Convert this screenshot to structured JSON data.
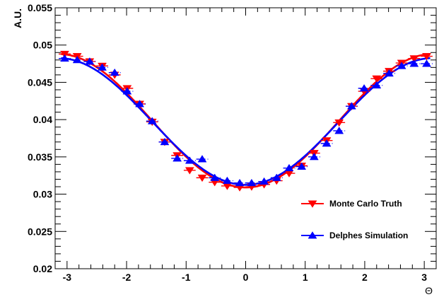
{
  "chart_data": {
    "type": "scatter",
    "title": "",
    "xlabel": "Θ",
    "ylabel": "A.U.",
    "xlim": [
      -3.2,
      3.2
    ],
    "ylim": [
      0.02,
      0.055
    ],
    "x_ticks": [
      -3,
      -2,
      -1,
      0,
      1,
      2,
      3
    ],
    "x_tick_labels": [
      "-3",
      "-2",
      "-1",
      "0",
      "1",
      "2",
      "3"
    ],
    "y_ticks": [
      0.02,
      0.025,
      0.03,
      0.035,
      0.04,
      0.045,
      0.05,
      0.055
    ],
    "y_tick_labels": [
      "0.02",
      "0.025",
      "0.03",
      "0.035",
      "0.04",
      "0.045",
      "0.05",
      "0.055"
    ],
    "legend_position": "right",
    "bin_half_width": 0.1,
    "series": [
      {
        "name": "Monte Carlo Truth",
        "color": "#ff0000",
        "marker": "triangle-down",
        "fit": {
          "a0": 0.03985,
          "a1": -0.00895
        },
        "x": [
          -3.04,
          -2.83,
          -2.62,
          -2.41,
          -2.2,
          -1.99,
          -1.78,
          -1.57,
          -1.36,
          -1.15,
          -0.94,
          -0.73,
          -0.52,
          -0.31,
          -0.1,
          0.1,
          0.31,
          0.52,
          0.73,
          0.94,
          1.15,
          1.36,
          1.57,
          1.78,
          1.99,
          2.2,
          2.41,
          2.62,
          2.83,
          3.04
        ],
        "y": [
          0.0488,
          0.0485,
          0.0478,
          0.0472,
          0.046,
          0.0442,
          0.0421,
          0.0397,
          0.037,
          0.0352,
          0.0332,
          0.0322,
          0.0316,
          0.0311,
          0.0309,
          0.031,
          0.0313,
          0.0318,
          0.0328,
          0.0338,
          0.0355,
          0.0372,
          0.0396,
          0.0418,
          0.0438,
          0.0455,
          0.0465,
          0.0476,
          0.0482,
          0.0485
        ],
        "y_err": [
          0.0003,
          0.0003,
          0.0003,
          0.0003,
          0.0003,
          0.0003,
          0.0003,
          0.0003,
          0.0003,
          0.0003,
          0.0003,
          0.0003,
          0.0003,
          0.0003,
          0.0003,
          0.0003,
          0.0003,
          0.0003,
          0.0003,
          0.0003,
          0.0003,
          0.0003,
          0.0003,
          0.0003,
          0.0003,
          0.0003,
          0.0003,
          0.0003,
          0.0003,
          0.0003
        ]
      },
      {
        "name": "Delphes Simulation",
        "color": "#0000ff",
        "marker": "triangle-up",
        "fit": {
          "a0": 0.03975,
          "a1": -0.0085
        },
        "x": [
          -3.04,
          -2.83,
          -2.62,
          -2.41,
          -2.2,
          -1.99,
          -1.78,
          -1.57,
          -1.36,
          -1.15,
          -0.94,
          -0.73,
          -0.52,
          -0.31,
          -0.1,
          0.1,
          0.31,
          0.52,
          0.73,
          0.94,
          1.15,
          1.36,
          1.57,
          1.78,
          1.99,
          2.2,
          2.41,
          2.62,
          2.83,
          3.04
        ],
        "y": [
          0.0482,
          0.048,
          0.0478,
          0.047,
          0.0463,
          0.0438,
          0.0421,
          0.0398,
          0.037,
          0.0348,
          0.0345,
          0.0347,
          0.0322,
          0.0318,
          0.0315,
          0.0315,
          0.0317,
          0.0322,
          0.0335,
          0.0337,
          0.035,
          0.0368,
          0.0385,
          0.0418,
          0.0442,
          0.0446,
          0.0462,
          0.0472,
          0.0475,
          0.0475
        ],
        "y_err": [
          0.0003,
          0.0003,
          0.0003,
          0.0003,
          0.0003,
          0.0003,
          0.0003,
          0.0003,
          0.0003,
          0.0003,
          0.0003,
          0.0003,
          0.0003,
          0.0003,
          0.0003,
          0.0003,
          0.0003,
          0.0003,
          0.0003,
          0.0003,
          0.0003,
          0.0003,
          0.0003,
          0.0003,
          0.0003,
          0.0003,
          0.0003,
          0.0003,
          0.0003,
          0.0003
        ]
      }
    ]
  }
}
